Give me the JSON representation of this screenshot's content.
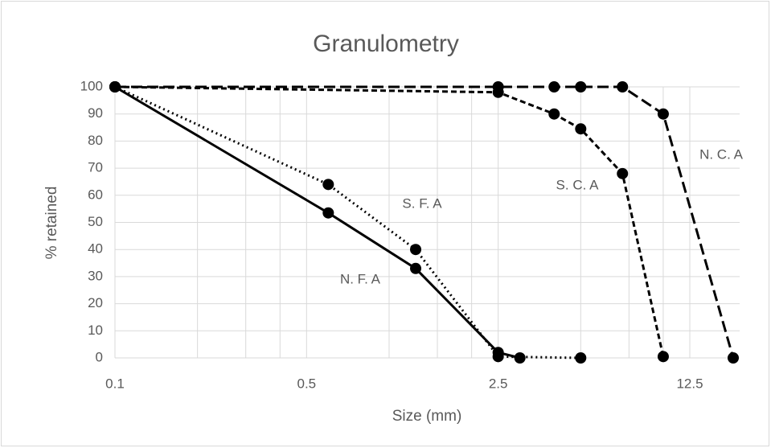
{
  "chart_data": {
    "type": "line",
    "title": "Granulometry",
    "x_label": "Size (mm)",
    "y_label": "% retained",
    "x_scale": "log",
    "xlim": [
      0.1,
      19
    ],
    "xticks": [
      0.1,
      0.5,
      2.5,
      12.5
    ],
    "x_minor_grid": [
      0.2,
      0.3,
      0.4,
      1,
      1.5,
      2,
      5,
      7.5,
      10
    ],
    "ylim": [
      0,
      100
    ],
    "yticks": [
      0,
      10,
      20,
      30,
      40,
      50,
      60,
      70,
      80,
      90,
      100
    ],
    "grid": true,
    "series": [
      {
        "name": "N. F. A",
        "color": "#000000",
        "dash": "solid",
        "x": [
          0.1,
          0.6,
          1.25,
          2.5,
          3
        ],
        "values": [
          100,
          53.5,
          33,
          2,
          0
        ]
      },
      {
        "name": "S. F. A",
        "color": "#000000",
        "dash": "dotted",
        "x": [
          0.1,
          0.6,
          1.25,
          2.5,
          5
        ],
        "values": [
          100,
          64,
          40,
          0.5,
          0
        ]
      },
      {
        "name": "S. C. A",
        "color": "#000000",
        "dash": "dashed",
        "x": [
          0.1,
          2.5,
          4,
          5,
          7.1,
          10
        ],
        "values": [
          100,
          98,
          90,
          84.5,
          68,
          0.5
        ]
      },
      {
        "name": "N. C. A",
        "color": "#000000",
        "dash": "longdash",
        "x": [
          0.1,
          2.5,
          4,
          5,
          7.1,
          10,
          18
        ],
        "values": [
          100,
          100,
          100,
          100,
          100,
          90,
          0
        ]
      }
    ]
  }
}
